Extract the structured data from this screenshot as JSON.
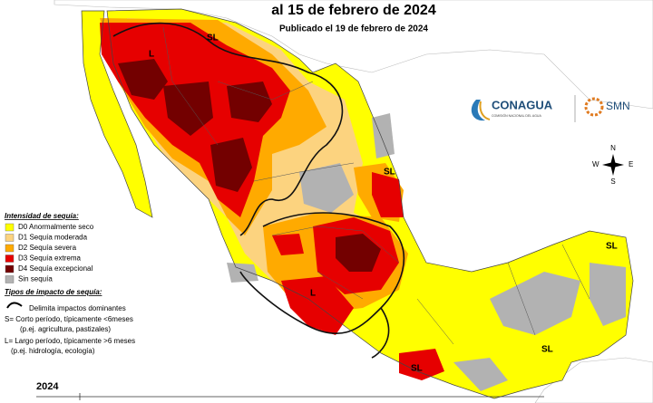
{
  "header": {
    "title": "al 15 de febrero de 2024",
    "subtitle": "Publicado el 19 de febrero de 2024"
  },
  "logos": {
    "conagua": "CONAGUA",
    "conagua_sub": "COMISIÓN NACIONAL DEL AGUA",
    "smn": "SMN"
  },
  "compass": {
    "n": "N",
    "s": "S",
    "e": "E",
    "w": "W"
  },
  "legend": {
    "title": "Intensidad de sequía:",
    "items": [
      {
        "label": "D0 Anormalmente seco",
        "color": "#ffff00"
      },
      {
        "label": "D1 Sequía moderada",
        "color": "#fcd37f"
      },
      {
        "label": "D2 Sequía severa",
        "color": "#ffaa00"
      },
      {
        "label": "D3 Sequía extrema",
        "color": "#e60000"
      },
      {
        "label": "D4 Sequía excepcional",
        "color": "#730000"
      },
      {
        "label": "Sin sequía",
        "color": "#b2b2b2"
      }
    ]
  },
  "impact": {
    "title": "Tipos de impacto de sequía:",
    "line": "Delimita impactos dominantes",
    "s_def": "S= Corto período, típicamente <6meses",
    "s_ex": "(p.ej. agricultura, pastizales)",
    "l_def": "L= Largo período, típicamente >6 meses",
    "l_ex": "(p.ej. hidrología, ecología)"
  },
  "map_labels": [
    "SL",
    "L",
    "SL",
    "L",
    "SL",
    "SL",
    "SL"
  ],
  "timeline": {
    "year": "2024"
  }
}
